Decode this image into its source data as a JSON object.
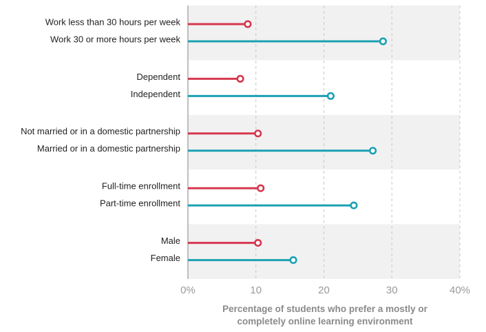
{
  "chart_data": {
    "type": "lollipop",
    "categories": [
      "Work less than 30 hours per week",
      "Work 30 or more hours per week",
      "Dependent",
      "Independent",
      "Not married or in a domestic partnership",
      "Married or in a domestic partnership",
      "Full-time enrollment",
      "Part-time enrollment",
      "Male",
      "Female"
    ],
    "values": [
      8.8,
      28.7,
      7.7,
      21.0,
      10.3,
      27.2,
      10.7,
      24.4,
      10.3,
      15.5
    ],
    "colors": [
      "#d6374f",
      "#1aa1b3",
      "#d6374f",
      "#1aa1b3",
      "#d6374f",
      "#1aa1b3",
      "#d6374f",
      "#1aa1b3",
      "#d6374f",
      "#1aa1b3"
    ],
    "xlim": [
      0,
      40
    ],
    "xticks": [
      {
        "value": 0,
        "label": "0%"
      },
      10,
      20,
      30,
      {
        "value": 40,
        "label": "40%"
      }
    ],
    "xlabel": "Percentage of students who prefer a mostly or completely online learning environment",
    "grid": true
  }
}
